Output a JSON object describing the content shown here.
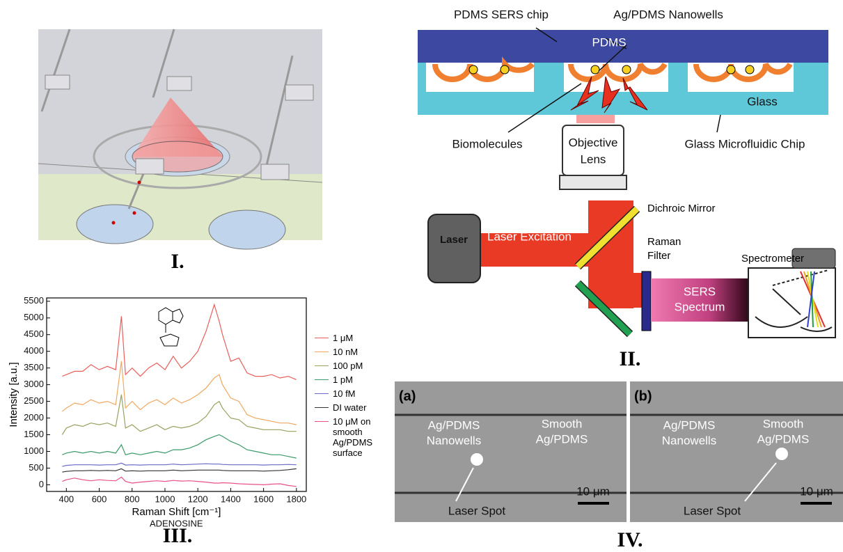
{
  "panel_labels": [
    "I.",
    "II.",
    "III.",
    "IV."
  ],
  "panel_ii": {
    "pdms_sers_chip": "PDMS SERS chip",
    "nanowells": "Ag/PDMS Nanowells",
    "pdms": "PDMS",
    "glass": "Glass",
    "biomolecules": "Biomolecules",
    "objective_lens": [
      "Objective",
      "Lens"
    ],
    "glass_chip": "Glass Microfluidic Chip",
    "dichroic_mirror": "Dichroic Mirror",
    "laser": "Laser",
    "laser_excitation": "Laser Excitation",
    "raman_filter": [
      "Raman",
      "Filter"
    ],
    "spectrometer": "Spectrometer",
    "sers_spectrum": [
      "SERS",
      "Spectrum"
    ]
  },
  "chart_data": {
    "type": "line",
    "xlabel": "Raman Shift [cm⁻¹]",
    "ylabel": "Intensity [a.u.]",
    "inset_label": "ADENOSINE",
    "x": [
      375,
      400,
      450,
      500,
      550,
      600,
      650,
      700,
      735,
      760,
      800,
      850,
      900,
      950,
      1000,
      1050,
      1100,
      1150,
      1200,
      1250,
      1300,
      1330,
      1350,
      1400,
      1450,
      1500,
      1550,
      1600,
      1650,
      1700,
      1750,
      1800
    ],
    "series": [
      {
        "name": "1 μM",
        "color": "#e8605c",
        "values": [
          3250,
          3300,
          3400,
          3400,
          3600,
          3450,
          3550,
          3450,
          5050,
          3300,
          3500,
          3250,
          3500,
          3650,
          3450,
          3850,
          3500,
          3700,
          4000,
          4600,
          5400,
          4900,
          4500,
          3700,
          3800,
          3350,
          3250,
          3250,
          3300,
          3200,
          3250,
          3150
        ]
      },
      {
        "name": "10 nM",
        "color": "#f0a860",
        "values": [
          2200,
          2300,
          2450,
          2400,
          2550,
          2450,
          2500,
          2400,
          3700,
          2300,
          2500,
          2250,
          2450,
          2550,
          2400,
          2600,
          2450,
          2550,
          2700,
          2900,
          3200,
          3300,
          3000,
          2600,
          2500,
          2100,
          2000,
          1950,
          1900,
          1850,
          1850,
          1800
        ]
      },
      {
        "name": "100 pM",
        "color": "#9aa060",
        "values": [
          1500,
          1700,
          1800,
          1750,
          1850,
          1800,
          1850,
          1750,
          2700,
          1700,
          1800,
          1600,
          1700,
          1800,
          1650,
          1750,
          1700,
          1750,
          1850,
          2050,
          2400,
          2500,
          2300,
          2000,
          1950,
          1750,
          1700,
          1650,
          1650,
          1650,
          1600,
          1600
        ]
      },
      {
        "name": "1 pM",
        "color": "#3a9a6a",
        "values": [
          900,
          950,
          1000,
          950,
          1000,
          950,
          1000,
          950,
          1200,
          900,
          950,
          900,
          950,
          1000,
          950,
          1050,
          1050,
          1100,
          1200,
          1350,
          1450,
          1500,
          1450,
          1300,
          1200,
          1050,
          1000,
          950,
          900,
          900,
          850,
          800
        ]
      },
      {
        "name": "10 fM",
        "color": "#6a6ac8",
        "values": [
          550,
          580,
          600,
          600,
          600,
          590,
          600,
          600,
          650,
          590,
          600,
          590,
          600,
          600,
          600,
          620,
          600,
          610,
          620,
          630,
          620,
          620,
          610,
          600,
          600,
          600,
          600,
          590,
          600,
          600,
          610,
          600
        ]
      },
      {
        "name": "DI water",
        "color": "#333333",
        "values": [
          380,
          400,
          420,
          420,
          430,
          420,
          430,
          420,
          480,
          410,
          420,
          410,
          420,
          420,
          420,
          440,
          420,
          430,
          440,
          440,
          440,
          440,
          430,
          420,
          420,
          420,
          420,
          410,
          420,
          430,
          450,
          480
        ]
      },
      {
        "name": "10 μM on smooth Ag/PDMS surface",
        "color": "#e8508a",
        "values": [
          100,
          150,
          200,
          150,
          120,
          150,
          130,
          120,
          230,
          100,
          50,
          80,
          100,
          120,
          100,
          130,
          110,
          120,
          100,
          80,
          50,
          50,
          60,
          50,
          30,
          20,
          10,
          0,
          20,
          30,
          -20,
          -50
        ]
      }
    ],
    "xlim": [
      280,
      1860
    ],
    "ylim": [
      -200,
      5600
    ],
    "xticks": [
      400,
      600,
      800,
      1000,
      1200,
      1400,
      1600,
      1800
    ],
    "yticks": [
      0,
      500,
      1000,
      1500,
      2000,
      2500,
      3000,
      3500,
      4000,
      4500,
      5000,
      5500
    ],
    "legend": "right",
    "grid": false
  },
  "panel_iv": {
    "a": {
      "tag": "(a)",
      "left": [
        "Ag/PDMS",
        "Nanowells"
      ],
      "right": [
        "Smooth",
        "Ag/PDMS"
      ],
      "spot": "Laser Spot",
      "scale": "10 μm"
    },
    "b": {
      "tag": "(b)",
      "left": [
        "Ag/PDMS",
        "Nanowells"
      ],
      "right": [
        "Smooth",
        "Ag/PDMS"
      ],
      "spot": "Laser Spot",
      "scale": "10 μm"
    }
  }
}
